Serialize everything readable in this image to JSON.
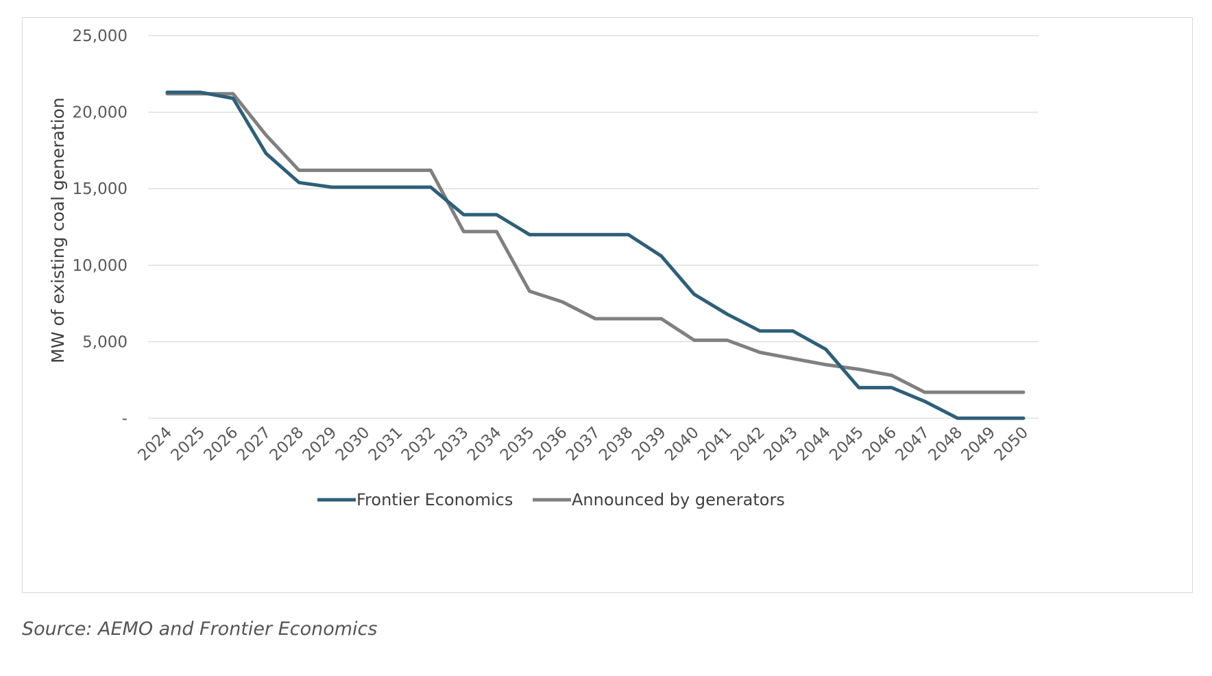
{
  "chart_data": {
    "type": "line",
    "title": "",
    "xlabel": "",
    "ylabel": "MW of existing coal generation",
    "x": [
      "2024",
      "2025",
      "2026",
      "2027",
      "2028",
      "2029",
      "2030",
      "2031",
      "2032",
      "2033",
      "2034",
      "2035",
      "2036",
      "2037",
      "2038",
      "2039",
      "2040",
      "2041",
      "2042",
      "2043",
      "2044",
      "2045",
      "2046",
      "2047",
      "2048",
      "2049",
      "2050"
    ],
    "ylim": [
      0,
      25000
    ],
    "yticks": [
      0,
      5000,
      10000,
      15000,
      20000,
      25000
    ],
    "ytick_labels": [
      "-",
      "5,000",
      "10,000",
      "15,000",
      "20,000",
      "25,000"
    ],
    "grid": "horizontal",
    "legend": "bottom",
    "series": [
      {
        "name": "Frontier Economics",
        "color": "#2f5f78",
        "values": [
          21300,
          21300,
          20900,
          17300,
          15400,
          15100,
          15100,
          15100,
          15100,
          13300,
          13300,
          12000,
          12000,
          12000,
          12000,
          10600,
          8100,
          6800,
          5700,
          5700,
          4500,
          2000,
          2000,
          1100,
          0,
          0,
          0
        ]
      },
      {
        "name": "Announced by generators",
        "color": "#808080",
        "values": [
          21200,
          21200,
          21200,
          18500,
          16200,
          16200,
          16200,
          16200,
          16200,
          12200,
          12200,
          8300,
          7600,
          6500,
          6500,
          6500,
          5100,
          5100,
          4300,
          3900,
          3500,
          3200,
          2800,
          1700,
          1700,
          1700,
          1700
        ]
      }
    ]
  },
  "source_note": "Source: AEMO and Frontier Economics"
}
